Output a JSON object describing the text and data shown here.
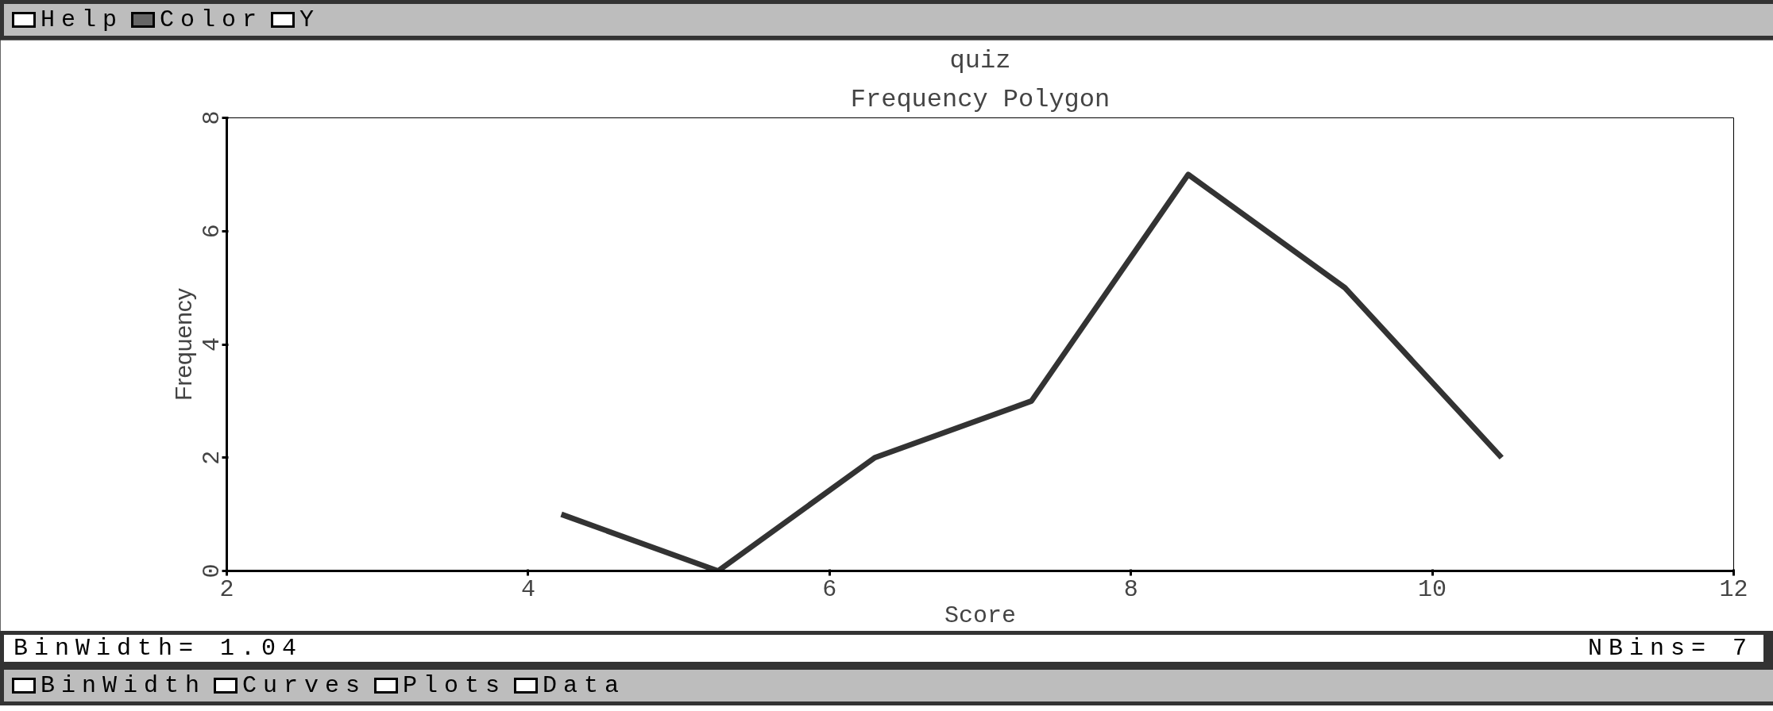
{
  "chart_data": {
    "type": "line",
    "title": "quiz",
    "subtitle": "Frequency Polygon",
    "xlabel": "Score",
    "ylabel": "Frequency",
    "x": [
      4.22,
      5.26,
      6.3,
      7.34,
      8.38,
      9.42,
      10.46
    ],
    "series": [
      {
        "color": "#333333",
        "values": [
          1,
          0,
          2,
          3,
          7,
          5,
          2
        ]
      }
    ],
    "xlim": [
      2,
      12
    ],
    "xticks": [
      2,
      4,
      6,
      8,
      10,
      12
    ],
    "ylim": [
      0,
      8
    ],
    "yticks": [
      0,
      2,
      4,
      6,
      8
    ],
    "grid": false,
    "marker": "none",
    "line_style": "solid",
    "annotations": [
      "Help",
      "Color",
      "Y",
      "BinWidth= 1.04",
      "NBins= 7",
      "BinWidth",
      "Curves",
      "Plots",
      "Data"
    ]
  }
}
